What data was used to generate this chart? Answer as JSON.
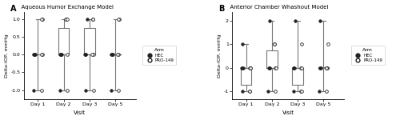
{
  "panel_A_title": "Aqueous Humor Exchange Model",
  "panel_B_title": "Anterior Chamber Whashout Model",
  "panel_A_label": "A",
  "panel_B_label": "B",
  "xlabel": "Visit",
  "ylabel_A": "Delta-IOP, mmHg",
  "ylabel_B": "Delta-IOP, mmHg",
  "visits": [
    "Day 1",
    "Day 2",
    "Day 3",
    "Day 5"
  ],
  "legend_title": "Arm",
  "legend_hec": "HEC",
  "legend_pro": "PRO-149",
  "hec_color": "#222222",
  "pro_edge": "#555555",
  "box_edge": "#777777",
  "panel_A_HEC": {
    "Day 1": [
      0.0,
      0.0,
      0.0,
      0.0,
      -1.0
    ],
    "Day 2": [
      0.0,
      0.0,
      0.0,
      0.0,
      -1.0
    ],
    "Day 3": [
      1.0,
      0.0,
      0.0,
      0.0,
      -1.0
    ],
    "Day 5": [
      0.0,
      0.0,
      0.0,
      0.0,
      -1.0
    ]
  },
  "panel_A_PRO": {
    "Day 1": [
      1.0,
      1.0,
      0.0,
      0.0,
      -1.0
    ],
    "Day 2": [
      1.0,
      1.0,
      1.0,
      0.0,
      -1.0
    ],
    "Day 3": [
      1.0,
      1.0,
      0.0,
      0.0,
      -1.0
    ],
    "Day 5": [
      1.0,
      1.0,
      0.0,
      0.0,
      -1.0
    ]
  },
  "panel_B_HEC": {
    "Day 1": [
      1.0,
      0.0,
      0.0,
      0.0,
      -1.0
    ],
    "Day 2": [
      2.0,
      0.0,
      0.0,
      0.0,
      -1.0
    ],
    "Day 3": [
      2.0,
      0.0,
      0.0,
      0.0,
      -1.0
    ],
    "Day 5": [
      2.0,
      0.0,
      0.0,
      0.0,
      -1.0
    ]
  },
  "panel_B_PRO": {
    "Day 1": [
      0.0,
      0.0,
      0.0,
      -1.0,
      -1.0
    ],
    "Day 2": [
      1.0,
      1.0,
      0.0,
      0.0,
      -1.0
    ],
    "Day 3": [
      1.0,
      0.0,
      0.0,
      -1.0,
      -1.0
    ],
    "Day 5": [
      1.0,
      0.0,
      0.0,
      0.0,
      -1.0
    ]
  },
  "panel_A_ylim": [
    -1.25,
    1.2
  ],
  "panel_B_ylim": [
    -1.35,
    2.4
  ],
  "panel_A_yticks": [
    -1.0,
    -0.5,
    0.0,
    0.5,
    1.0
  ],
  "panel_B_yticks": [
    -1.0,
    0.0,
    1.0,
    2.0
  ],
  "panel_A_yticklabels": [
    "-1.0",
    "-0.5",
    "0.0",
    "0.5",
    "1.0"
  ],
  "panel_B_yticklabels": [
    "-1",
    "0",
    "1",
    "2"
  ]
}
